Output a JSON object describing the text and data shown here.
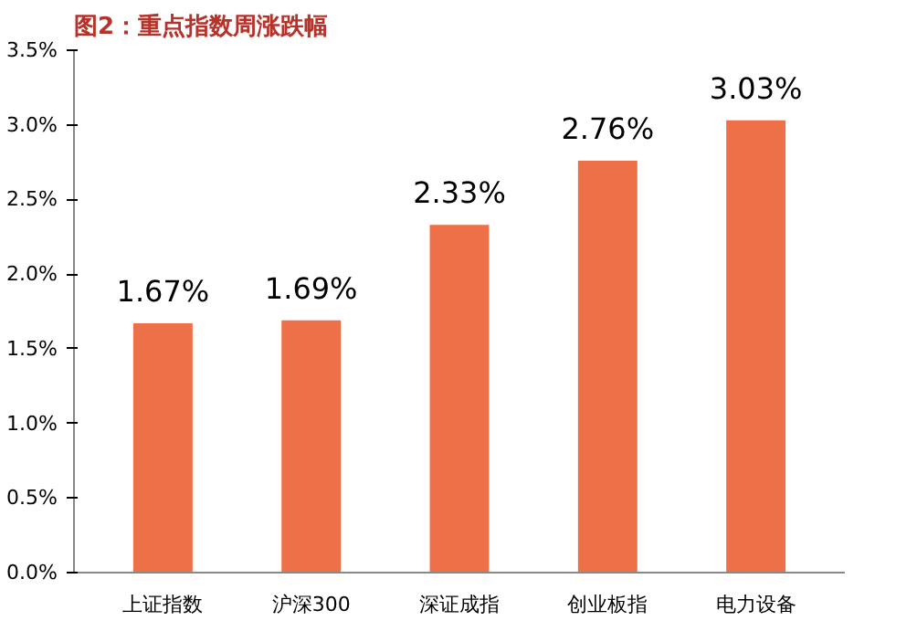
{
  "chart_data": {
    "type": "bar",
    "title": "图2：重点指数周涨跌幅",
    "categories": [
      "上证指数",
      "沪深300",
      "深证成指",
      "创业板指",
      "电力设备"
    ],
    "values": [
      1.67,
      1.69,
      2.33,
      2.76,
      3.03
    ],
    "value_labels": [
      "1.67%",
      "1.69%",
      "2.33%",
      "2.76%",
      "3.03%"
    ],
    "color": "#ed7049",
    "ylim": [
      0,
      3.5
    ],
    "yticks": [
      {
        "value": 0,
        "label": "0.0%"
      },
      {
        "value": 0.5,
        "label": "0.5%"
      },
      {
        "value": 1,
        "label": "1.0%"
      },
      {
        "value": 1.5,
        "label": "1.5%"
      },
      {
        "value": 2,
        "label": "2.0%"
      },
      {
        "value": 2.5,
        "label": "2.5%"
      },
      {
        "value": 3,
        "label": "3.0%"
      },
      {
        "value": 3.5,
        "label": "3.5%"
      }
    ],
    "grid": false
  }
}
